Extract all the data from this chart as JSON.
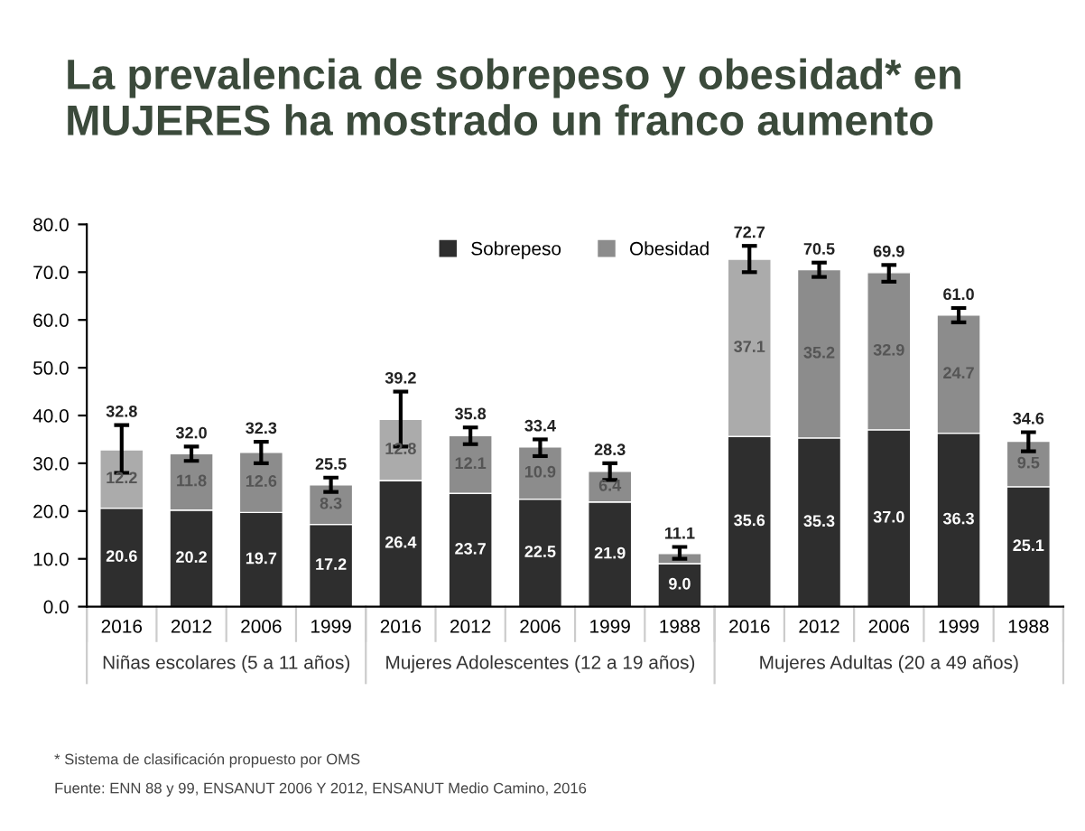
{
  "chart_data": {
    "type": "bar",
    "title": "La prevalencia de sobrepeso y obesidad* en MUJERES ha mostrado un franco aumento",
    "categories": [
      "2016",
      "2012",
      "2006",
      "1999",
      "2016",
      "2012",
      "2006",
      "1999",
      "1988",
      "2016",
      "2012",
      "2006",
      "1999",
      "1988"
    ],
    "stacked": true,
    "series": [
      {
        "name": "Sobrepeso",
        "color": "#2e2e2e",
        "values": [
          20.6,
          20.2,
          19.7,
          17.2,
          26.4,
          23.7,
          22.5,
          21.9,
          9.0,
          35.6,
          35.3,
          37.0,
          36.3,
          25.1
        ],
        "value_labels": [
          "20.6",
          "20.2",
          "19.7",
          "17.2",
          "26.4",
          "23.7",
          "22.5",
          "21.9",
          "9.0",
          "35.6",
          "35.3",
          "37.0",
          "36.3",
          "25.1"
        ]
      },
      {
        "name": "Obesidad",
        "color": "#8c8c8c",
        "colors": [
          "#ababab",
          "#8c8c8c",
          "#8c8c8c",
          "#8c8c8c",
          "#ababab",
          "#8c8c8c",
          "#8c8c8c",
          "#8c8c8c",
          "#8c8c8c",
          "#ababab",
          "#8c8c8c",
          "#8c8c8c",
          "#8c8c8c",
          "#8c8c8c"
        ],
        "values": [
          12.2,
          11.8,
          12.6,
          8.3,
          12.8,
          12.1,
          10.9,
          6.4,
          2.1,
          37.1,
          35.2,
          32.9,
          24.7,
          9.5
        ],
        "value_labels": [
          "12.2",
          "11.8",
          "12.6",
          "8.3",
          "12.8",
          "12.1",
          "10.9",
          "6.4",
          null,
          "37.1",
          "35.2",
          "32.9",
          "24.7",
          "9.5"
        ],
        "errors": [
          [
            28.0,
            38.0
          ],
          [
            30.5,
            33.5
          ],
          [
            30.0,
            34.5
          ],
          [
            24.0,
            27.0
          ],
          [
            33.5,
            45.0
          ],
          [
            34.0,
            37.5
          ],
          [
            31.5,
            35.0
          ],
          [
            26.5,
            30.0
          ],
          [
            10.0,
            12.5
          ],
          [
            70.0,
            75.5
          ],
          [
            69.0,
            72.0
          ],
          [
            68.0,
            71.5
          ],
          [
            59.5,
            62.5
          ],
          [
            32.5,
            36.5
          ]
        ]
      }
    ],
    "totals": [
      "32.8",
      "32.0",
      "32.3",
      "25.5",
      "39.2",
      "35.8",
      "33.4",
      "28.3",
      "11.1",
      "72.7",
      "70.5",
      "69.9",
      "61.0",
      "34.6"
    ],
    "ylim": [
      0,
      80
    ],
    "yticks": [
      {
        "value": 0,
        "label": "0.0"
      },
      {
        "value": 10,
        "label": "10.0"
      },
      {
        "value": 20,
        "label": "20.0"
      },
      {
        "value": 30,
        "label": "30.0"
      },
      {
        "value": 40,
        "label": "40.0"
      },
      {
        "value": 50,
        "label": "50.0"
      },
      {
        "value": 60,
        "label": "60.0"
      },
      {
        "value": 70,
        "label": "70.0"
      },
      {
        "value": 80,
        "label": "80.0"
      }
    ],
    "grid": false,
    "legend": "top",
    "annotations": [
      "Niñas escolares (5 a 11 años)",
      "Mujeres Adolescentes (12 a 19 años)",
      "Mujeres Adultas (20 a 49 años)",
      "* Sistema de clasificación propuesto por OMS",
      "Fuente: ENN 88 y 99, ENSANUT 2006 Y 2012, ENSANUT Medio Camino, 2016"
    ]
  }
}
